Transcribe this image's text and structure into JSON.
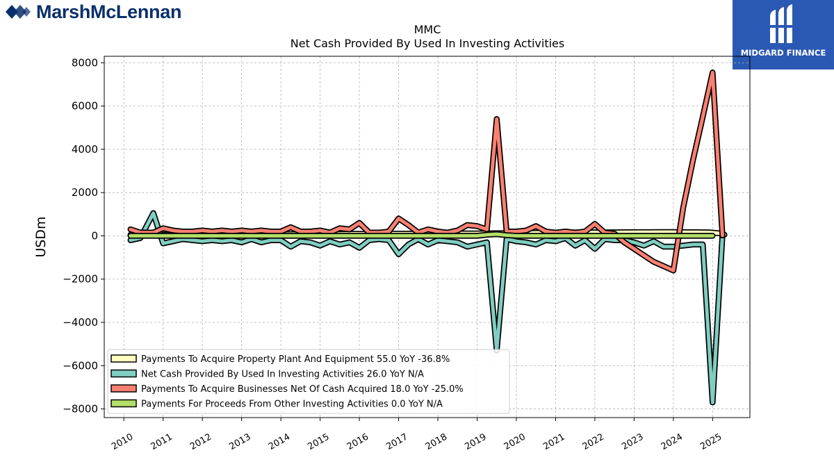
{
  "brand": {
    "name": "MarshMcLennan",
    "logo_icon": "marshmclennan-logo-icon"
  },
  "badge": {
    "name": "MIDGARD FINANCE",
    "logo_icon": "midgard-logo-icon",
    "color": "#2a59b3"
  },
  "chart_data": {
    "type": "line",
    "title": "MMC",
    "subtitle": "Net Cash Provided By Used In Investing Activities",
    "ylabel": "USDm",
    "xlabel": "",
    "ylim": [
      -8400,
      8300
    ],
    "xlim": [
      2009.5,
      2025.95
    ],
    "yticks": [
      -8000,
      -6000,
      -4000,
      -2000,
      0,
      2000,
      4000,
      6000,
      8000
    ],
    "ytick_labels": [
      "−8000",
      "−6000",
      "−4000",
      "−2000",
      "0",
      "2000",
      "4000",
      "6000",
      "8000"
    ],
    "xticks": [
      2010,
      2011,
      2012,
      2013,
      2014,
      2015,
      2016,
      2017,
      2018,
      2019,
      2020,
      2021,
      2022,
      2023,
      2024,
      2025
    ],
    "xtick_labels": [
      "2010",
      "2011",
      "2012",
      "2013",
      "2014",
      "2015",
      "2016",
      "2017",
      "2018",
      "2019",
      "2020",
      "2021",
      "2022",
      "2023",
      "2024",
      "2025"
    ],
    "grid": true,
    "legend_position": "lower-left",
    "series": [
      {
        "legend": "Payments To Acquire Property Plant And Equipment  55.0 YoY -36.8%",
        "color": "#ffffbf",
        "points": [
          [
            2010.17,
            50
          ],
          [
            2010.42,
            55
          ],
          [
            2010.67,
            60
          ],
          [
            2010.92,
            55
          ],
          [
            2011.17,
            60
          ],
          [
            2011.42,
            62
          ],
          [
            2011.67,
            65
          ],
          [
            2011.92,
            60
          ],
          [
            2012.17,
            65
          ],
          [
            2012.42,
            68
          ],
          [
            2012.67,
            70
          ],
          [
            2012.92,
            72
          ],
          [
            2013.17,
            70
          ],
          [
            2013.42,
            75
          ],
          [
            2013.67,
            72
          ],
          [
            2013.92,
            78
          ],
          [
            2014.17,
            80
          ],
          [
            2014.42,
            82
          ],
          [
            2014.67,
            85
          ],
          [
            2014.92,
            80
          ],
          [
            2015.17,
            85
          ],
          [
            2015.42,
            88
          ],
          [
            2015.67,
            90
          ],
          [
            2015.92,
            95
          ],
          [
            2016.17,
            92
          ],
          [
            2016.42,
            95
          ],
          [
            2016.67,
            98
          ],
          [
            2016.92,
            100
          ],
          [
            2017.17,
            98
          ],
          [
            2017.42,
            100
          ],
          [
            2017.67,
            102
          ],
          [
            2017.92,
            105
          ],
          [
            2018.17,
            100
          ],
          [
            2018.42,
            105
          ],
          [
            2018.67,
            110
          ],
          [
            2018.92,
            112
          ],
          [
            2019.17,
            115
          ],
          [
            2019.42,
            120
          ],
          [
            2019.67,
            125
          ],
          [
            2019.92,
            130
          ],
          [
            2020.17,
            135
          ],
          [
            2020.42,
            140
          ],
          [
            2020.67,
            145
          ],
          [
            2020.92,
            150
          ],
          [
            2021.17,
            150
          ],
          [
            2021.42,
            155
          ],
          [
            2021.67,
            158
          ],
          [
            2021.92,
            160
          ],
          [
            2022.17,
            160
          ],
          [
            2022.42,
            162
          ],
          [
            2022.67,
            165
          ],
          [
            2022.92,
            168
          ],
          [
            2023.17,
            170
          ],
          [
            2023.42,
            172
          ],
          [
            2023.67,
            175
          ],
          [
            2023.92,
            175
          ],
          [
            2024.17,
            170
          ],
          [
            2024.42,
            168
          ],
          [
            2024.67,
            165
          ],
          [
            2024.92,
            160
          ],
          [
            2025.17,
            120
          ],
          [
            2025.3,
            55
          ]
        ]
      },
      {
        "legend": "Net Cash Provided By Used In Investing Activities  26.0 YoY N/A",
        "color": "#80cdc1",
        "points": [
          [
            2010.17,
            -200
          ],
          [
            2010.42,
            -100
          ],
          [
            2010.75,
            1050
          ],
          [
            2011.0,
            -350
          ],
          [
            2011.5,
            -150
          ],
          [
            2011.75,
            -200
          ],
          [
            2012.0,
            -250
          ],
          [
            2012.25,
            -200
          ],
          [
            2012.5,
            -250
          ],
          [
            2012.75,
            -200
          ],
          [
            2013.0,
            -300
          ],
          [
            2013.25,
            -150
          ],
          [
            2013.5,
            -300
          ],
          [
            2013.75,
            -200
          ],
          [
            2014.0,
            -200
          ],
          [
            2014.25,
            -500
          ],
          [
            2014.5,
            -250
          ],
          [
            2014.75,
            -300
          ],
          [
            2015.0,
            -450
          ],
          [
            2015.25,
            -250
          ],
          [
            2015.5,
            -400
          ],
          [
            2015.75,
            -300
          ],
          [
            2016.0,
            -550
          ],
          [
            2016.25,
            -200
          ],
          [
            2016.5,
            -150
          ],
          [
            2016.75,
            -200
          ],
          [
            2017.0,
            -850
          ],
          [
            2017.25,
            -400
          ],
          [
            2017.5,
            -150
          ],
          [
            2017.75,
            -400
          ],
          [
            2018.0,
            -200
          ],
          [
            2018.25,
            -250
          ],
          [
            2018.5,
            -300
          ],
          [
            2018.75,
            -500
          ],
          [
            2019.0,
            -400
          ],
          [
            2019.25,
            -300
          ],
          [
            2019.5,
            -5300
          ],
          [
            2019.75,
            -150
          ],
          [
            2020.0,
            -250
          ],
          [
            2020.25,
            -300
          ],
          [
            2020.5,
            -400
          ],
          [
            2020.75,
            -200
          ],
          [
            2021.0,
            -250
          ],
          [
            2021.25,
            -100
          ],
          [
            2021.5,
            -450
          ],
          [
            2021.75,
            -200
          ],
          [
            2022.0,
            -600
          ],
          [
            2022.25,
            -150
          ],
          [
            2022.5,
            -200
          ],
          [
            2022.75,
            -200
          ],
          [
            2023.0,
            -300
          ],
          [
            2023.25,
            -450
          ],
          [
            2023.5,
            -250
          ],
          [
            2023.75,
            -500
          ],
          [
            2024.0,
            -500
          ],
          [
            2024.25,
            -450
          ],
          [
            2024.5,
            -400
          ],
          [
            2024.75,
            -400
          ],
          [
            2025.0,
            -7700
          ],
          [
            2025.25,
            26
          ]
        ]
      },
      {
        "legend": "Payments To Acquire Businesses Net Of Cash Acquired  18.0 YoY -25.0%",
        "color": "#fb8072",
        "points": [
          [
            2010.17,
            300
          ],
          [
            2010.42,
            150
          ],
          [
            2010.75,
            150
          ],
          [
            2011.0,
            350
          ],
          [
            2011.25,
            250
          ],
          [
            2011.5,
            200
          ],
          [
            2011.75,
            200
          ],
          [
            2012.0,
            250
          ],
          [
            2012.25,
            200
          ],
          [
            2012.5,
            250
          ],
          [
            2012.75,
            200
          ],
          [
            2013.0,
            250
          ],
          [
            2013.25,
            200
          ],
          [
            2013.5,
            250
          ],
          [
            2013.75,
            200
          ],
          [
            2014.0,
            200
          ],
          [
            2014.25,
            400
          ],
          [
            2014.5,
            200
          ],
          [
            2014.75,
            200
          ],
          [
            2015.0,
            250
          ],
          [
            2015.25,
            150
          ],
          [
            2015.5,
            350
          ],
          [
            2015.75,
            300
          ],
          [
            2016.0,
            600
          ],
          [
            2016.25,
            150
          ],
          [
            2016.5,
            150
          ],
          [
            2016.75,
            200
          ],
          [
            2017.0,
            800
          ],
          [
            2017.25,
            500
          ],
          [
            2017.5,
            150
          ],
          [
            2017.75,
            300
          ],
          [
            2018.0,
            200
          ],
          [
            2018.25,
            150
          ],
          [
            2018.5,
            250
          ],
          [
            2018.75,
            500
          ],
          [
            2019.0,
            450
          ],
          [
            2019.25,
            300
          ],
          [
            2019.5,
            5400
          ],
          [
            2019.75,
            200
          ],
          [
            2020.0,
            200
          ],
          [
            2020.25,
            250
          ],
          [
            2020.5,
            450
          ],
          [
            2020.75,
            200
          ],
          [
            2021.0,
            150
          ],
          [
            2021.25,
            200
          ],
          [
            2021.5,
            150
          ],
          [
            2021.75,
            200
          ],
          [
            2022.0,
            550
          ],
          [
            2022.25,
            150
          ],
          [
            2022.5,
            100
          ],
          [
            2022.75,
            -300
          ],
          [
            2023.0,
            -600
          ],
          [
            2023.25,
            -900
          ],
          [
            2023.5,
            -1200
          ],
          [
            2023.75,
            -1400
          ],
          [
            2024.0,
            -1600
          ],
          [
            2024.25,
            1300
          ],
          [
            2024.5,
            3500
          ],
          [
            2024.75,
            5500
          ],
          [
            2025.0,
            7550
          ],
          [
            2025.25,
            18
          ]
        ]
      },
      {
        "legend": "Payments For Proceeds From Other Investing Activities  0.0 YoY N/A",
        "color": "#b3de69",
        "points": [
          [
            2010.17,
            0
          ],
          [
            2010.42,
            0
          ],
          [
            2010.67,
            0
          ],
          [
            2010.92,
            0
          ],
          [
            2011.5,
            0
          ],
          [
            2012.0,
            0
          ],
          [
            2012.5,
            0
          ],
          [
            2013.0,
            0
          ],
          [
            2013.5,
            0
          ],
          [
            2014.0,
            0
          ],
          [
            2014.5,
            0
          ],
          [
            2015.0,
            0
          ],
          [
            2015.5,
            0
          ],
          [
            2016.0,
            0
          ],
          [
            2016.5,
            0
          ],
          [
            2017.0,
            0
          ],
          [
            2017.5,
            0
          ],
          [
            2018.0,
            0
          ],
          [
            2018.5,
            0
          ],
          [
            2019.0,
            0
          ],
          [
            2019.25,
            50
          ],
          [
            2019.5,
            80
          ],
          [
            2019.75,
            30
          ],
          [
            2020.0,
            0
          ],
          [
            2020.5,
            0
          ],
          [
            2021.0,
            0
          ],
          [
            2021.5,
            0
          ],
          [
            2022.0,
            0
          ],
          [
            2022.5,
            0
          ],
          [
            2023.0,
            0
          ],
          [
            2023.5,
            0
          ],
          [
            2024.0,
            0
          ],
          [
            2024.5,
            0
          ],
          [
            2025.0,
            0
          ]
        ]
      }
    ]
  }
}
